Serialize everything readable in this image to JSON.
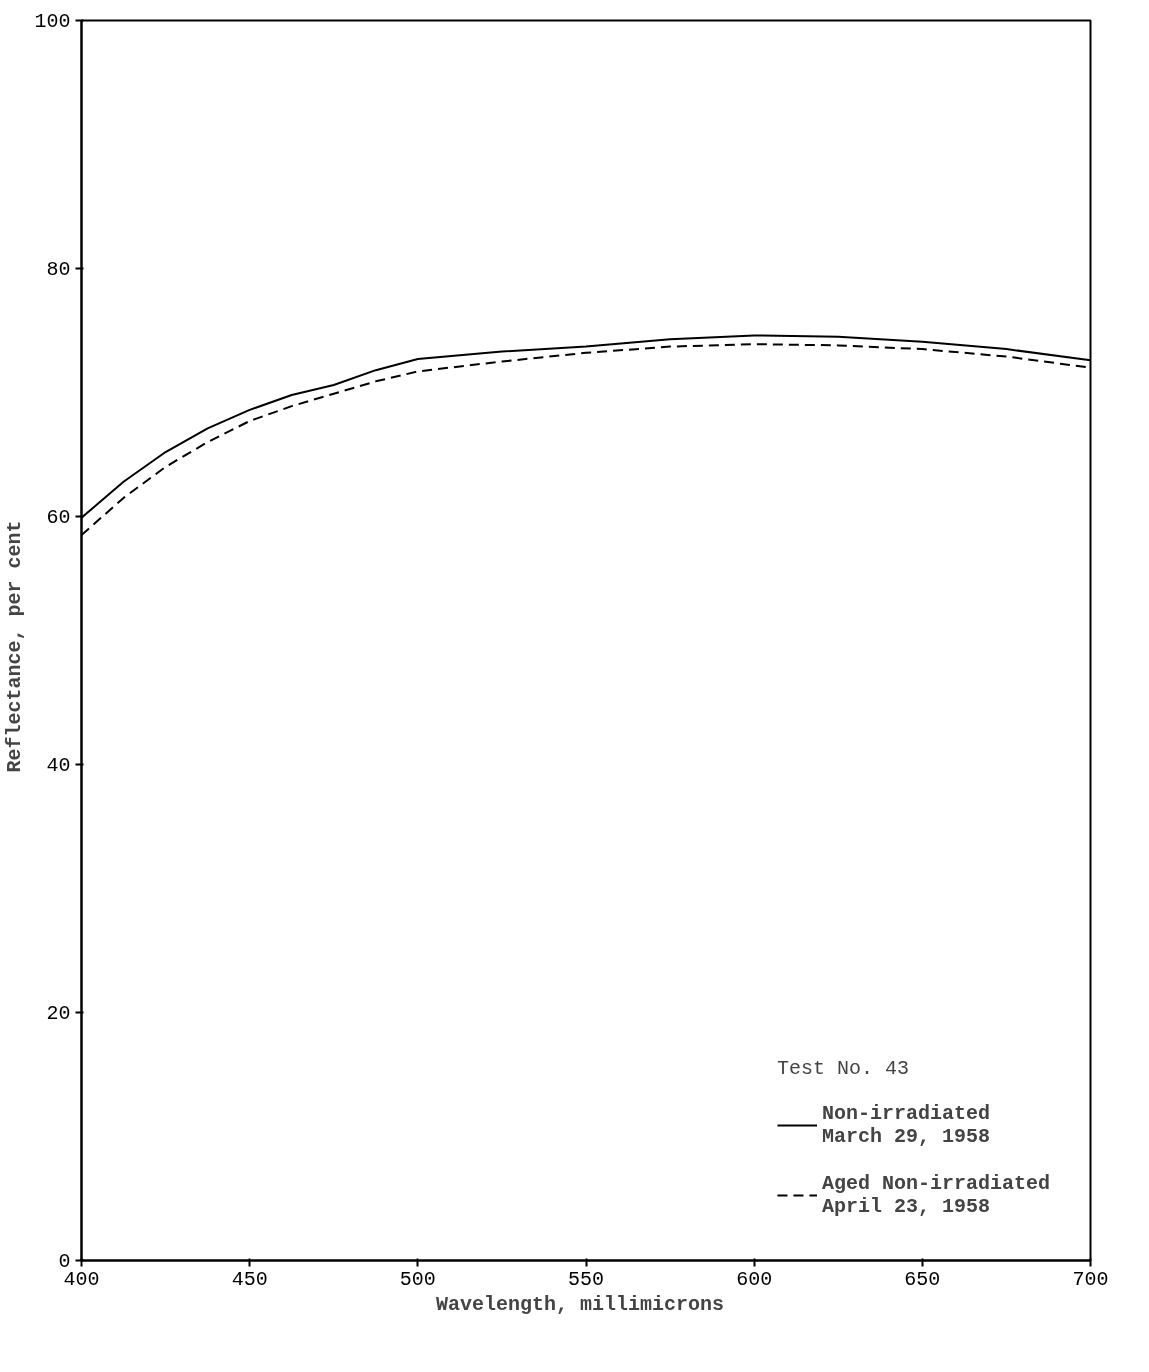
{
  "chart_data": {
    "type": "line",
    "xlabel": "Wavelength,  millimicrons",
    "ylabel": "Reflectance,  per cent",
    "legend_title": "Test No. 43",
    "x": [
      400,
      412.5,
      425,
      437.5,
      450,
      462.5,
      475,
      487.5,
      500,
      525,
      550,
      575,
      600,
      625,
      650,
      675,
      700
    ],
    "series": [
      {
        "name": "Non-irradiated\nMarch 29, 1958",
        "color": "#000000",
        "line_style": "solid",
        "values": [
          59.9,
          62.8,
          65.2,
          67.1,
          68.6,
          69.8,
          70.6,
          71.8,
          72.7,
          73.3,
          73.7,
          74.3,
          74.6,
          74.5,
          74.1,
          73.5,
          72.6
        ]
      },
      {
        "name": "Aged Non-irradiated\nApril 23, 1958",
        "color": "#000000",
        "line_style": "dashed",
        "values": [
          58.5,
          61.5,
          64.0,
          66.0,
          67.7,
          68.9,
          69.9,
          70.9,
          71.7,
          72.5,
          73.2,
          73.7,
          73.9,
          73.8,
          73.5,
          72.9,
          72.0
        ]
      }
    ],
    "xlim": [
      400,
      700
    ],
    "xticks": [
      400,
      450,
      500,
      550,
      600,
      650,
      700
    ],
    "ylim": [
      0,
      100
    ],
    "yticks": [
      0,
      20,
      40,
      60,
      80,
      100
    ],
    "grid": false,
    "legend": "bottom right"
  }
}
